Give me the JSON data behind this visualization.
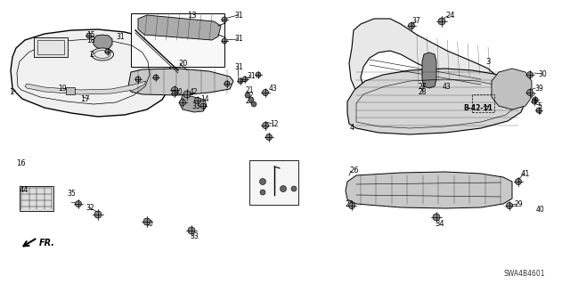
{
  "bg_color": "#ffffff",
  "line_color": "#000000",
  "diagram_code": "SWA4B4601",
  "dark_gray": "#555555",
  "med_gray": "#888888",
  "light_gray": "#cccccc",
  "note_label": "B-42-11"
}
